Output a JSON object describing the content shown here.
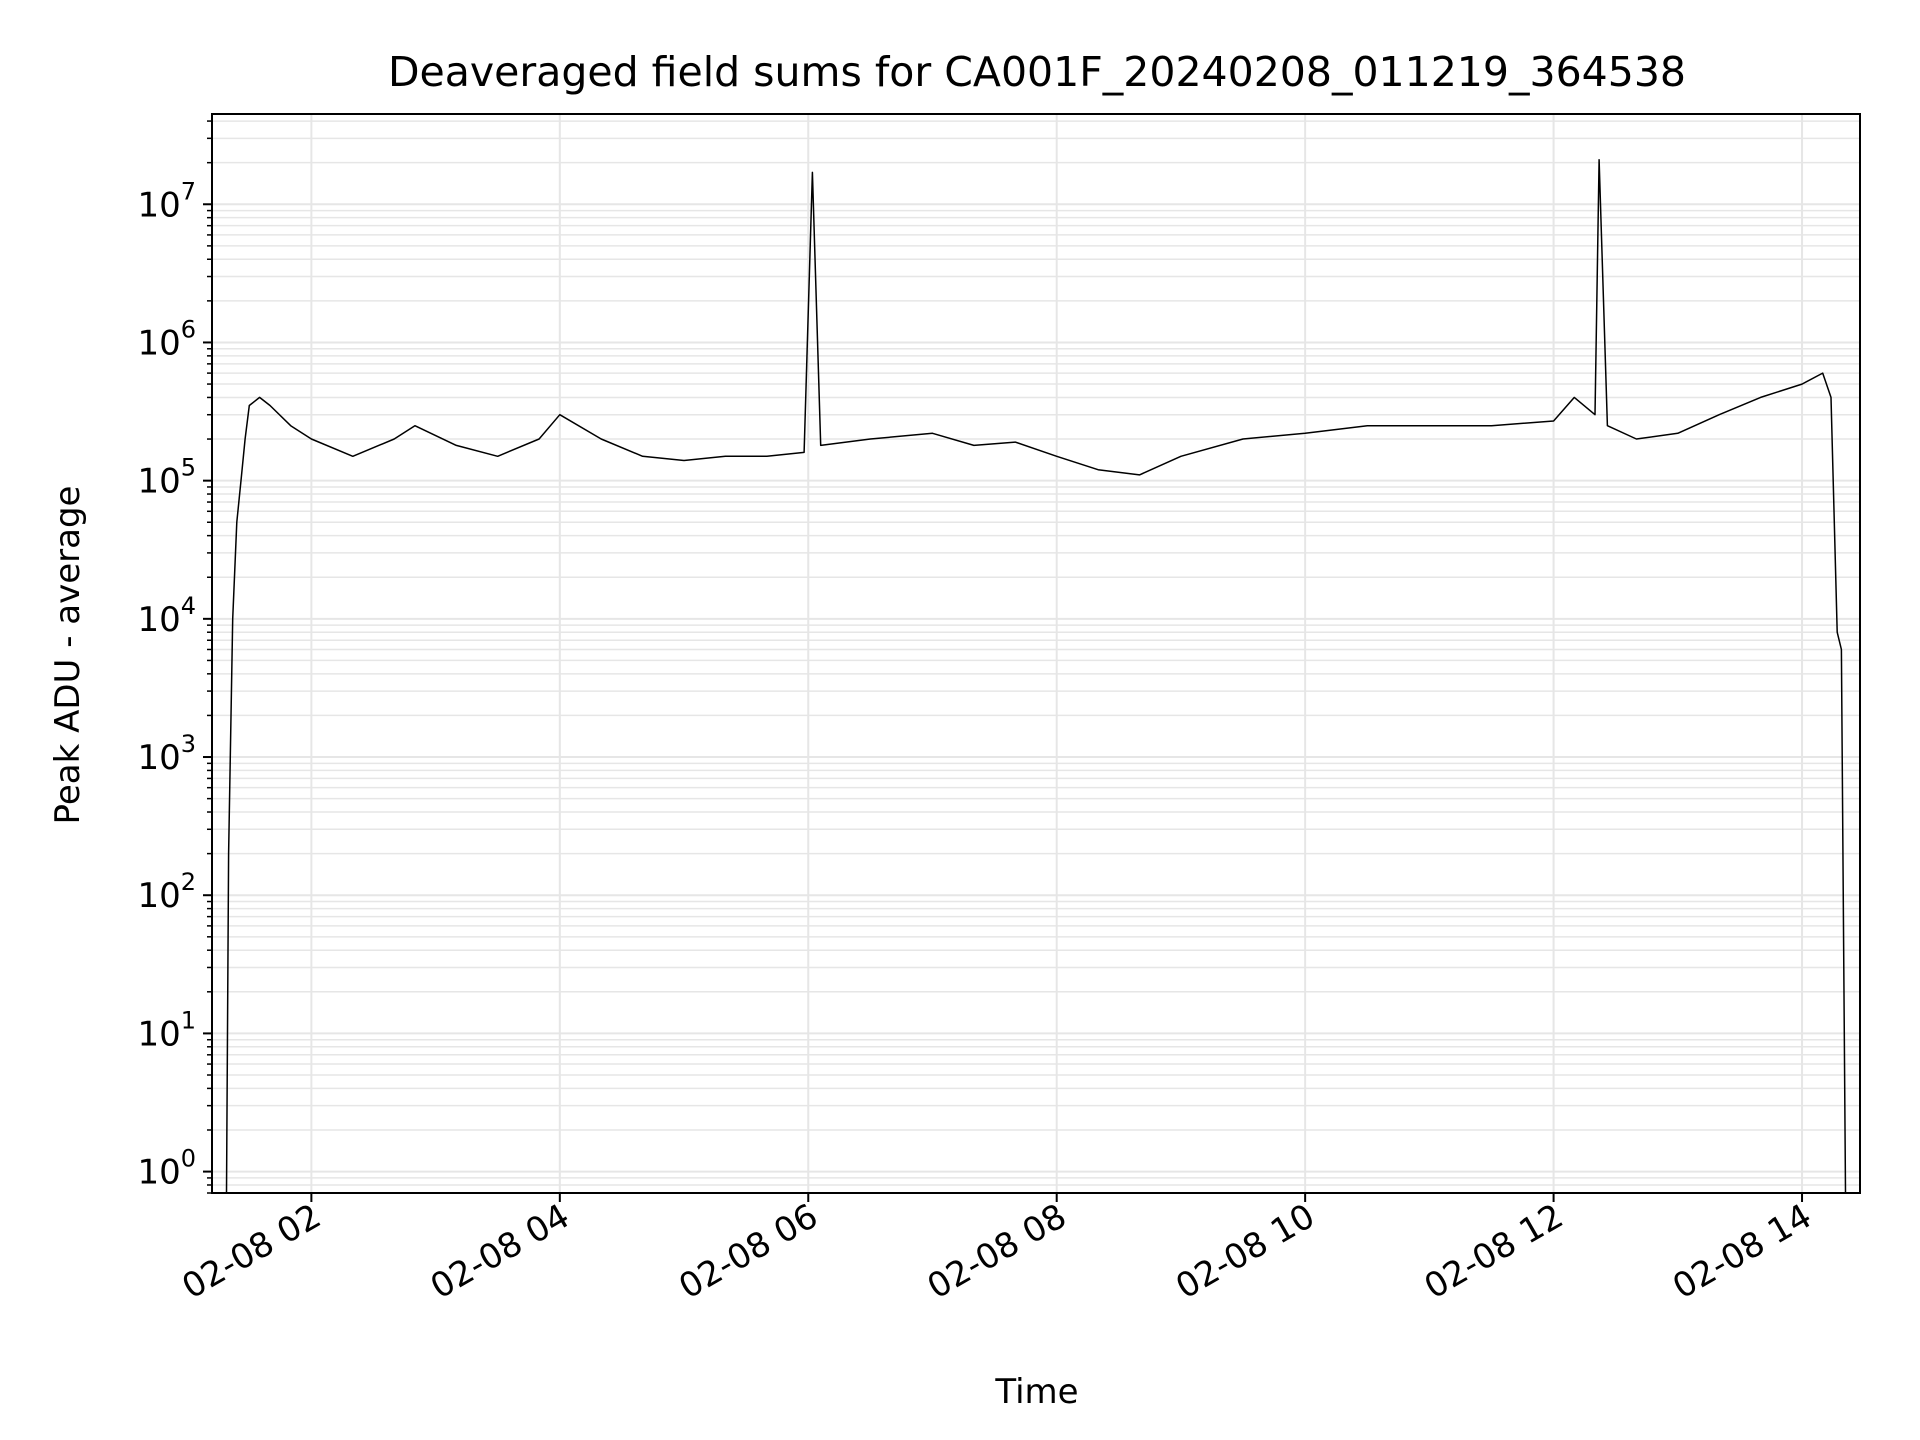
{
  "chart_data": {
    "type": "line",
    "title": "Deaveraged field sums for CA001F_20240208_011219_364538",
    "xlabel": "Time",
    "ylabel": "Peak ADU - average",
    "y_scale": "log",
    "ylim": [
      0.7,
      45000000
    ],
    "xlim": [
      "2024-02-08 01:12",
      "2024-02-08 14:28"
    ],
    "x_ticks": [
      {
        "value": "2024-02-08 02:00",
        "label": "02-08 02"
      },
      {
        "value": "2024-02-08 04:00",
        "label": "02-08 04"
      },
      {
        "value": "2024-02-08 06:00",
        "label": "02-08 06"
      },
      {
        "value": "2024-02-08 08:00",
        "label": "02-08 08"
      },
      {
        "value": "2024-02-08 10:00",
        "label": "02-08 10"
      },
      {
        "value": "2024-02-08 12:00",
        "label": "02-08 12"
      },
      {
        "value": "2024-02-08 14:00",
        "label": "02-08 14"
      }
    ],
    "y_ticks": [
      {
        "value": 1,
        "base": "10",
        "exp": "0"
      },
      {
        "value": 10,
        "base": "10",
        "exp": "1"
      },
      {
        "value": 100,
        "base": "10",
        "exp": "2"
      },
      {
        "value": 1000,
        "base": "10",
        "exp": "3"
      },
      {
        "value": 10000,
        "base": "10",
        "exp": "4"
      },
      {
        "value": 100000,
        "base": "10",
        "exp": "5"
      },
      {
        "value": 1000000,
        "base": "10",
        "exp": "6"
      },
      {
        "value": 10000000,
        "base": "10",
        "exp": "7"
      }
    ],
    "grid": true,
    "line_color": "#000000",
    "grid_color": "#e6e6e6",
    "series": [
      {
        "x": [
          "2024-02-08 01:19",
          "2024-02-08 01:20",
          "2024-02-08 01:22",
          "2024-02-08 01:24",
          "2024-02-08 01:26",
          "2024-02-08 01:28",
          "2024-02-08 01:30",
          "2024-02-08 01:35",
          "2024-02-08 01:40",
          "2024-02-08 01:50",
          "2024-02-08 02:00",
          "2024-02-08 02:20",
          "2024-02-08 02:40",
          "2024-02-08 02:50",
          "2024-02-08 03:10",
          "2024-02-08 03:30",
          "2024-02-08 03:50",
          "2024-02-08 04:00",
          "2024-02-08 04:20",
          "2024-02-08 04:40",
          "2024-02-08 05:00",
          "2024-02-08 05:20",
          "2024-02-08 05:40",
          "2024-02-08 05:58",
          "2024-02-08 06:02",
          "2024-02-08 06:06",
          "2024-02-08 06:30",
          "2024-02-08 07:00",
          "2024-02-08 07:20",
          "2024-02-08 07:40",
          "2024-02-08 08:00",
          "2024-02-08 08:20",
          "2024-02-08 08:40",
          "2024-02-08 09:00",
          "2024-02-08 09:30",
          "2024-02-08 10:00",
          "2024-02-08 10:30",
          "2024-02-08 11:00",
          "2024-02-08 11:30",
          "2024-02-08 12:00",
          "2024-02-08 12:10",
          "2024-02-08 12:20",
          "2024-02-08 12:22",
          "2024-02-08 12:26",
          "2024-02-08 12:40",
          "2024-02-08 13:00",
          "2024-02-08 13:20",
          "2024-02-08 13:40",
          "2024-02-08 14:00",
          "2024-02-08 14:10",
          "2024-02-08 14:14",
          "2024-02-08 14:17",
          "2024-02-08 14:19",
          "2024-02-08 14:21"
        ],
        "values": [
          0.7,
          200,
          10000,
          50000,
          100000,
          200000,
          350000,
          400000,
          350000,
          250000,
          200000,
          150000,
          200000,
          250000,
          180000,
          150000,
          200000,
          300000,
          200000,
          150000,
          140000,
          150000,
          150000,
          160000,
          17000000,
          180000,
          200000,
          220000,
          180000,
          190000,
          150000,
          120000,
          110000,
          150000,
          200000,
          220000,
          250000,
          250000,
          250000,
          270000,
          400000,
          300000,
          21000000,
          250000,
          200000,
          220000,
          300000,
          400000,
          500000,
          600000,
          400000,
          8000,
          6000,
          0.7
        ]
      }
    ]
  }
}
